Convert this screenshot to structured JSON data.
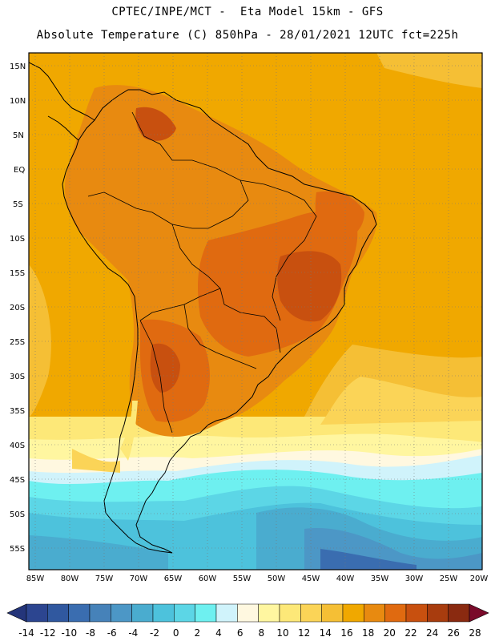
{
  "header": {
    "line1": "CPTEC/INPE/MCT -  Eta Model 15km - GFS",
    "line2": "Absolute Temperature (C) 850hPa - 28/01/2021 12UTC fct=225h"
  },
  "map": {
    "lat_labels": [
      "15N",
      "10N",
      "5N",
      "EQ",
      "5S",
      "10S",
      "15S",
      "20S",
      "25S",
      "30S",
      "35S",
      "40S",
      "45S",
      "50S",
      "55S"
    ],
    "lon_labels": [
      "85W",
      "80W",
      "75W",
      "70W",
      "65W",
      "60W",
      "55W",
      "50W",
      "45W",
      "40W",
      "35W",
      "30W",
      "25W",
      "20W"
    ]
  },
  "colorbar": {
    "labels": [
      "-14",
      "-12",
      "-10",
      "-8",
      "-6",
      "-4",
      "-2",
      "0",
      "2",
      "4",
      "6",
      "8",
      "10",
      "12",
      "14",
      "16",
      "18",
      "20",
      "22",
      "24",
      "26",
      "28"
    ],
    "colors": [
      "#2c4590",
      "#30589f",
      "#3a6db0",
      "#4682b9",
      "#4c97c6",
      "#4aaccf",
      "#4dc2dc",
      "#5cd6e6",
      "#6ef0f0",
      "#d0f3fb",
      "#fff8e0",
      "#fff6a0",
      "#fde878",
      "#fbd457",
      "#f5bf35",
      "#f0a800",
      "#e88a10",
      "#e06a10",
      "#c8500f",
      "#a83c0e",
      "#8a2a10"
    ],
    "low_color": "#24357a",
    "high_color": "#7a0a2a"
  }
}
